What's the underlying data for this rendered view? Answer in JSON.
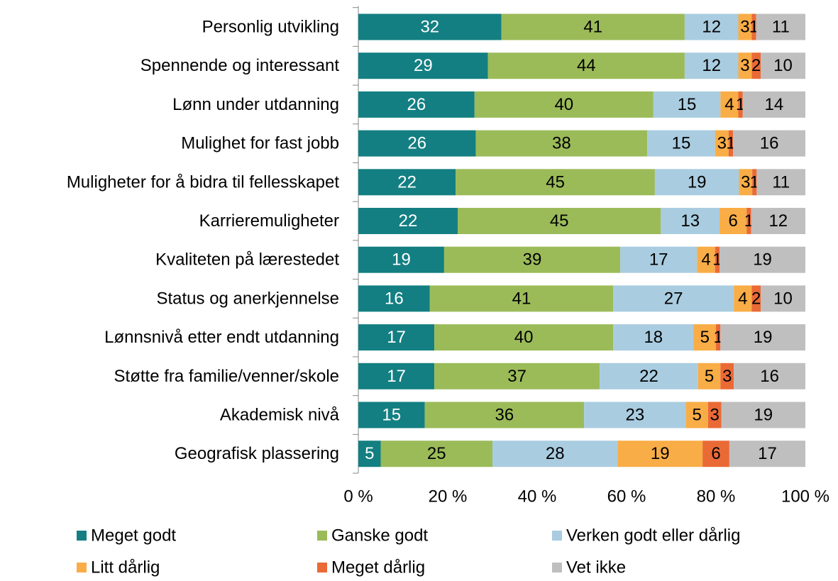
{
  "chart_data": {
    "type": "stacked-bar-horizontal",
    "stack": "percent",
    "categories": [
      "Personlig utvikling",
      "Spennende og interessant",
      "Lønn under utdanning",
      "Mulighet for fast jobb",
      "Muligheter for å bidra til fellesskapet",
      "Karrieremuligheter",
      "Kvaliteten på lærestedet",
      "Status og anerkjennelse",
      "Lønnsnivå etter endt utdanning",
      "Støtte fra familie/venner/skole",
      "Akademisk nivå",
      "Geografisk plassering"
    ],
    "series": [
      {
        "name": "Meget godt",
        "color": "#137f82",
        "values": [
          32,
          29,
          26,
          26,
          22,
          22,
          19,
          16,
          17,
          17,
          15,
          5
        ]
      },
      {
        "name": "Ganske godt",
        "color": "#9bbb59",
        "values": [
          41,
          44,
          40,
          38,
          45,
          45,
          39,
          41,
          40,
          37,
          36,
          25
        ]
      },
      {
        "name": "Verken godt eller dårlig",
        "color": "#a9cce0",
        "values": [
          12,
          12,
          15,
          15,
          19,
          13,
          17,
          27,
          18,
          22,
          23,
          28
        ]
      },
      {
        "name": "Litt dårlig",
        "color": "#f9ad46",
        "values": [
          3,
          3,
          4,
          3,
          3,
          6,
          4,
          4,
          5,
          5,
          5,
          19
        ]
      },
      {
        "name": "Meget dårlig",
        "color": "#ea6a36",
        "values": [
          1,
          2,
          1,
          1,
          1,
          1,
          1,
          2,
          1,
          3,
          3,
          6
        ]
      },
      {
        "name": "Vet ikke",
        "color": "#bfbfbf",
        "values": [
          11,
          10,
          14,
          16,
          11,
          12,
          19,
          10,
          19,
          16,
          19,
          17
        ]
      }
    ],
    "xlim": [
      0,
      100
    ],
    "xticks": [
      {
        "value": 0,
        "label": "0 %"
      },
      {
        "value": 20,
        "label": "20 %"
      },
      {
        "value": 40,
        "label": "40 %"
      },
      {
        "value": 60,
        "label": "60 %"
      },
      {
        "value": 80,
        "label": "80 %"
      },
      {
        "value": 100,
        "label": "100 %"
      }
    ]
  }
}
